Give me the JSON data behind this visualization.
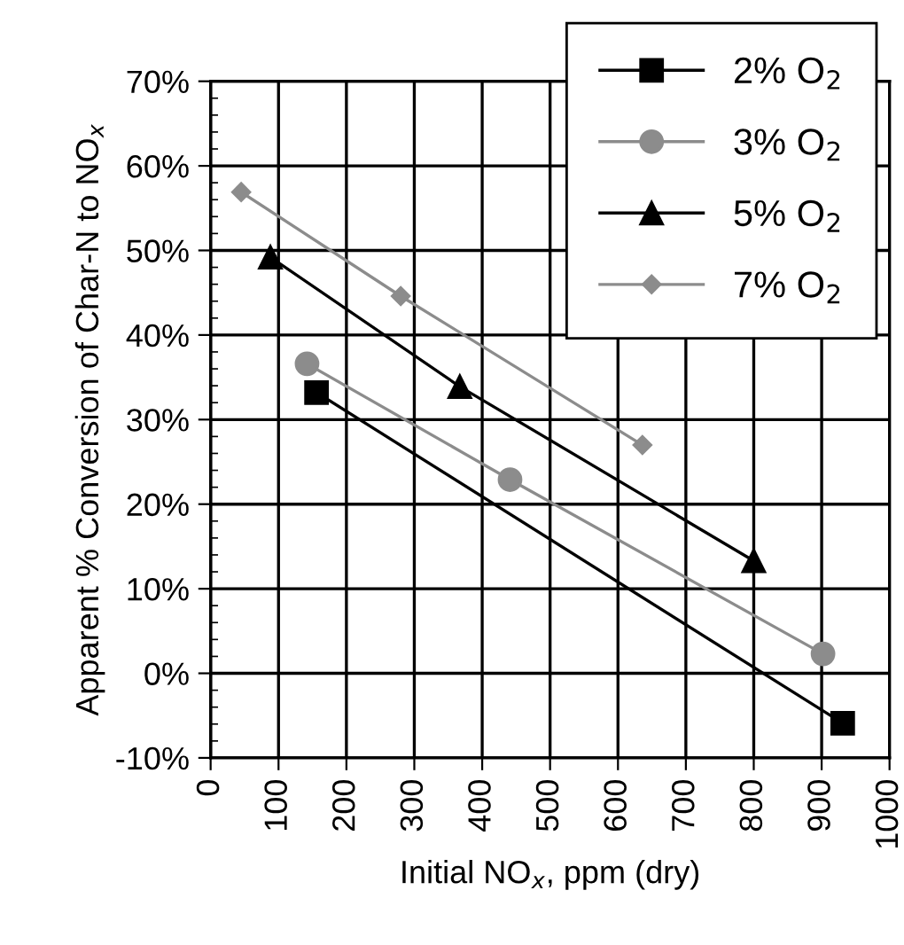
{
  "chart_data": {
    "type": "line",
    "xlabel": "Initial NO$_{x}$, ppm (dry)",
    "ylabel": "Apparent % Conversion of Char-N to NO$_{x}$",
    "xlim": [
      0,
      1000
    ],
    "xticks": [
      0,
      100,
      200,
      300,
      400,
      500,
      600,
      700,
      800,
      900,
      1000
    ],
    "ylim": [
      -10,
      70
    ],
    "yticks": [
      {
        "value": -10,
        "label": "-10%"
      },
      {
        "value": 0,
        "label": "0%"
      },
      {
        "value": 10,
        "label": "10%"
      },
      {
        "value": 20,
        "label": "20%"
      },
      {
        "value": 30,
        "label": "30%"
      },
      {
        "value": 40,
        "label": "40%"
      },
      {
        "value": 50,
        "label": "50%"
      },
      {
        "value": 60,
        "label": "60%"
      },
      {
        "value": 70,
        "label": "70%"
      }
    ],
    "grid": true,
    "legend": "top right",
    "line_style": "solid",
    "series": [
      {
        "name": "2% O$_{2}$",
        "color": "#000000",
        "marker": "square",
        "x": [
          156,
          931
        ],
        "values": [
          33.2,
          -5.9
        ]
      },
      {
        "name": "3% O$_{2}$",
        "color": "#8c8c8c",
        "marker": "circle",
        "x": [
          142,
          441,
          902
        ],
        "values": [
          36.6,
          22.9,
          2.3
        ]
      },
      {
        "name": "5% O$_{2}$",
        "color": "#000000",
        "marker": "triangle",
        "x": [
          88,
          367,
          800
        ],
        "values": [
          49.2,
          33.9,
          13.3
        ]
      },
      {
        "name": "7% O$_{2}$",
        "color": "#8c8c8c",
        "marker": "diamond",
        "x": [
          45,
          280,
          636
        ],
        "values": [
          56.9,
          44.6,
          27.0
        ]
      }
    ]
  }
}
